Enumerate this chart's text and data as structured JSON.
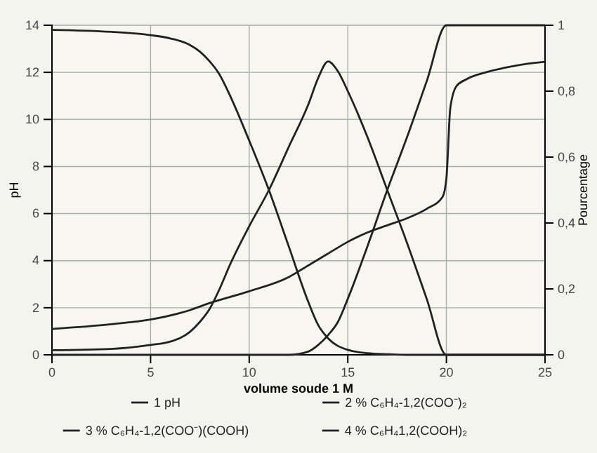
{
  "chart_data": {
    "type": "line",
    "xlabel": "volume soude 1 M",
    "ylabel": "pH",
    "y2label": "Pourcentage",
    "xlim": [
      0,
      25
    ],
    "xticks": [
      0,
      5,
      10,
      15,
      20,
      25
    ],
    "ylim": [
      0,
      14
    ],
    "yticks": [
      0,
      2,
      4,
      6,
      8,
      10,
      12,
      14
    ],
    "y2lim": [
      0,
      1
    ],
    "y2ticks": [
      0,
      {
        "value": 0.2,
        "label": "0,2"
      },
      {
        "value": 0.4,
        "label": "0,4"
      },
      {
        "value": 0.6,
        "label": "0,6"
      },
      {
        "value": 0.8,
        "label": "0,8"
      },
      1
    ],
    "grid": true,
    "legend": "bottom",
    "marker": "none",
    "line_style": "solid",
    "series": [
      {
        "name": "1 pH",
        "color": "#222222",
        "x": [
          0,
          3,
          5,
          7,
          8,
          10,
          12,
          13,
          14,
          15,
          16,
          17,
          18,
          19,
          19.8,
          20,
          20.2,
          20.5,
          21,
          22,
          23,
          24,
          25
        ],
        "values": [
          1.1,
          1.3,
          1.5,
          1.9,
          2.2,
          2.7,
          3.3,
          3.8,
          4.3,
          4.8,
          5.2,
          5.5,
          5.8,
          6.2,
          6.7,
          7.5,
          10.5,
          11.4,
          11.7,
          12.0,
          12.2,
          12.35,
          12.45
        ]
      },
      {
        "name": "2  % C₆H₄-1,2(COO⁻)₂",
        "color": "#222222",
        "axis": "y2",
        "x": [
          0,
          12,
          13,
          13.5,
          14,
          14.5,
          15,
          16,
          17,
          18,
          19,
          20,
          25
        ],
        "values": [
          0,
          0,
          0.01,
          0.03,
          0.06,
          0.1,
          0.17,
          0.33,
          0.5,
          0.66,
          0.83,
          1,
          1
        ]
      },
      {
        "name": "3  % C₆H₄-1,2(COO⁻)(COOH)",
        "color": "#222222",
        "axis": "y2",
        "x": [
          0,
          3,
          5,
          6,
          7,
          7.5,
          8,
          8.5,
          9,
          10,
          11,
          12,
          13,
          13.5,
          14,
          14.5,
          15,
          16,
          17,
          18,
          19,
          20,
          25
        ],
        "values": [
          0.014,
          0.018,
          0.03,
          0.04,
          0.07,
          0.1,
          0.14,
          0.2,
          0.27,
          0.39,
          0.5,
          0.63,
          0.76,
          0.84,
          0.89,
          0.86,
          0.8,
          0.66,
          0.5,
          0.34,
          0.17,
          0,
          0
        ]
      },
      {
        "name": "4  % C₆H₄1,2(COOH)₂",
        "color": "#222222",
        "axis": "y2",
        "x": [
          0,
          3,
          5,
          6,
          7,
          7.5,
          8,
          8.5,
          9,
          10,
          11,
          12,
          13,
          13.5,
          14,
          15,
          16,
          17,
          18,
          20,
          25
        ],
        "values": [
          0.986,
          0.98,
          0.97,
          0.96,
          0.94,
          0.92,
          0.89,
          0.85,
          0.79,
          0.65,
          0.5,
          0.33,
          0.16,
          0.09,
          0.05,
          0.015,
          0.005,
          0.002,
          0,
          0,
          0
        ]
      }
    ]
  }
}
